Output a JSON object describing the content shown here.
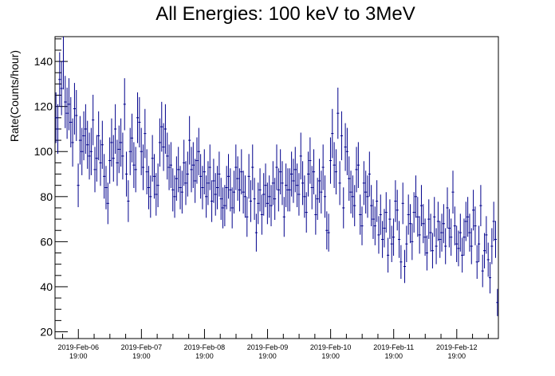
{
  "chart_data": {
    "type": "scatter",
    "title": "All Energies:  100 keV to 3MeV",
    "xlabel": "",
    "ylabel": "Rate(Counts/hour)",
    "ylim": [
      17,
      151
    ],
    "xlim": [
      -0.37,
      6.66
    ],
    "x_unit": "days since 2019-Feb-06 19:00",
    "yticks": [
      20,
      40,
      60,
      80,
      100,
      120,
      140
    ],
    "xticks": [
      {
        "pos": 0,
        "date": "2019-Feb-06",
        "time": "19:00"
      },
      {
        "pos": 1,
        "date": "2019-Feb-07",
        "time": "19:00"
      },
      {
        "pos": 2,
        "date": "2019-Feb-08",
        "time": "19:00"
      },
      {
        "pos": 3,
        "date": "2019-Feb-09",
        "time": "19:00"
      },
      {
        "pos": 4,
        "date": "2019-Feb-10",
        "time": "19:00"
      },
      {
        "pos": 5,
        "date": "2019-Feb-11",
        "time": "19:00"
      },
      {
        "pos": 6,
        "date": "2019-Feb-12",
        "time": "19:00"
      }
    ],
    "bin_width_days": 0.04167,
    "grid": false,
    "series": [
      {
        "name": "",
        "color": "#00008b",
        "values": [
          115,
          110,
          132,
          128,
          140,
          122,
          117,
          121,
          113,
          104,
          119,
          116,
          85,
          105,
          100,
          107,
          110,
          103,
          98,
          100,
          114,
          92,
          97,
          107,
          95,
          103,
          89,
          84,
          77,
          96,
          104,
          97,
          110,
          95,
          101,
          104,
          98,
          121,
          90,
          78,
          100,
          106,
          94,
          92,
          115,
          113,
          100,
          93,
          108,
          91,
          84,
          80,
          97,
          89,
          81,
          85,
          104,
          111,
          102,
          110,
          98,
          93,
          94,
          83,
          80,
          88,
          92,
          84,
          82,
          95,
          86,
          90,
          105,
          92,
          94,
          87,
          96,
          100,
          89,
          84,
          91,
          80,
          86,
          93,
          78,
          87,
          81,
          84,
          90,
          79,
          75,
          76,
          84,
          89,
          83,
          75,
          82,
          93,
          88,
          83,
          91,
          82,
          80,
          71,
          89,
          78,
          93,
          79,
          64,
          77,
          83,
          72,
          81,
          85,
          77,
          80,
          76,
          86,
          79,
          93,
          83,
          91,
          86,
          71,
          85,
          83,
          83,
          90,
          87,
          92,
          85,
          81,
          98,
          86,
          80,
          73,
          90,
          96,
          84,
          91,
          72,
          79,
          87,
          82,
          93,
          80,
          65,
          64,
          96,
          108,
          94,
          91,
          117,
          86,
          107,
          75,
          102,
          100,
          88,
          82,
          80,
          76,
          92,
          94,
          72,
          67,
          86,
          82,
          80,
          90,
          76,
          70,
          67,
          78,
          63,
          72,
          61,
          66,
          73,
          54,
          70,
          59,
          62,
          78,
          74,
          61,
          51,
          77,
          49,
          59,
          72,
          68,
          60,
          73,
          80,
          71,
          63,
          76,
          68,
          62,
          55,
          70,
          64,
          56,
          71,
          58,
          69,
          61,
          64,
          68,
          58,
          75,
          66,
          62,
          82,
          67,
          59,
          57,
          64,
          54,
          62,
          69,
          71,
          64,
          58,
          74,
          67,
          51,
          59,
          76,
          47,
          56,
          63,
          52,
          44,
          58,
          69,
          61,
          33
        ]
      }
    ]
  }
}
